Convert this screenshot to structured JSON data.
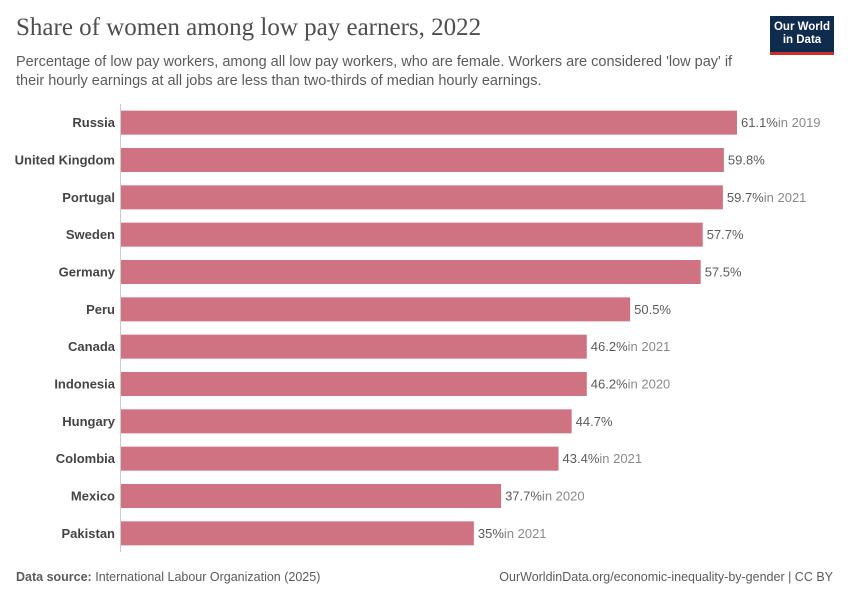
{
  "header": {
    "title": "Share of women among low pay earners, 2022",
    "subtitle": "Percentage of low pay workers, among all low pay workers, who are female. Workers are considered 'low pay' if their hourly earnings at all jobs are less than two-thirds of median hourly earnings."
  },
  "logo": {
    "line1": "Our World",
    "line2": "in Data"
  },
  "footer": {
    "source_label": "Data source:",
    "source_value": "International Labour Organization (2025)",
    "url": "OurWorldinData.org/economic-inequality-by-gender | CC BY"
  },
  "colors": {
    "bar": "#cf7281",
    "label": "#5b5b5b",
    "note": "#8a8a8a",
    "axis": "#cccccc",
    "category": "#444444"
  },
  "chart_data": {
    "type": "bar",
    "orientation": "horizontal",
    "title": "Share of women among low pay earners, 2022",
    "categories": [
      "Russia",
      "United Kingdom",
      "Portugal",
      "Sweden",
      "Germany",
      "Peru",
      "Canada",
      "Indonesia",
      "Hungary",
      "Colombia",
      "Mexico",
      "Pakistan"
    ],
    "values": [
      61.1,
      59.8,
      59.7,
      57.7,
      57.5,
      50.5,
      46.2,
      46.2,
      44.7,
      43.4,
      37.7,
      35
    ],
    "value_labels": [
      "61.1%",
      "59.8%",
      "59.7%",
      "57.7%",
      "57.5%",
      "50.5%",
      "46.2%",
      "46.2%",
      "44.7%",
      "43.4%",
      "37.7%",
      "35%"
    ],
    "notes": [
      "in 2019",
      "",
      "in 2021",
      "",
      "",
      "",
      "in 2021",
      "in 2020",
      "",
      "in 2021",
      "in 2020",
      "in 2021"
    ],
    "unit": "%",
    "xlim": [
      0,
      61.1
    ],
    "xlabel": "",
    "ylabel": ""
  }
}
